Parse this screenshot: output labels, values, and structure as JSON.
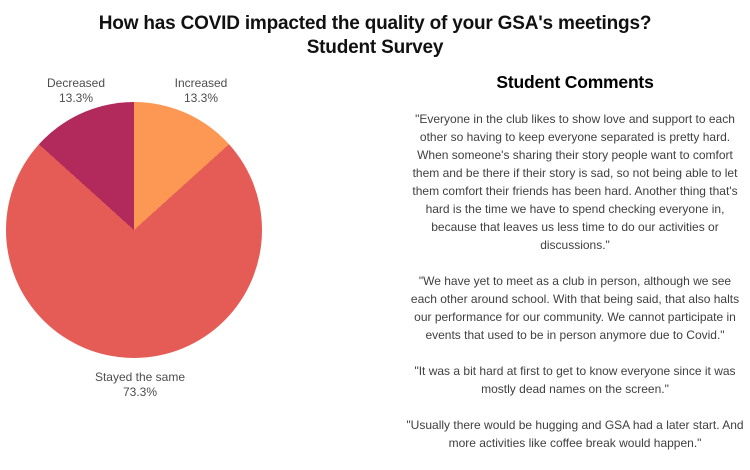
{
  "title": {
    "line1": "How has COVID impacted the quality of your GSA's meetings?",
    "line2": "Student Survey"
  },
  "pie": {
    "labels": {
      "increased": {
        "name": "Increased",
        "pct": "13.3%"
      },
      "stayed": {
        "name": "Stayed the same",
        "pct": "73.3%"
      },
      "decreased": {
        "name": "Decreased",
        "pct": "13.3%"
      }
    }
  },
  "comments": {
    "heading": "Student Comments",
    "items": [
      "\"Everyone in the club likes to show love and support to each other so having to keep everyone separated is pretty hard. When someone's sharing their story people want to comfort them and be there if their story is sad, so not being able to let them comfort their friends has been hard. Another thing that's hard is the time we have to spend checking everyone in, because that leaves us less time to do our activities or discussions.\"",
      "\"We have yet to meet as a club in person, although we see each other around school. With that being said, that also halts our performance for our community. We cannot participate in events that used to be in person anymore due to Covid.\"",
      "\"It was a bit hard at first to get to know everyone since it was mostly dead names on the screen.\"",
      "\"Usually there would be hugging and GSA had a later start. And more activities like coffee break would happen.\""
    ]
  },
  "chart_data": {
    "type": "pie",
    "title": "How has COVID impacted the quality of your GSA's meetings? Student Survey",
    "categories": [
      "Increased",
      "Stayed the same",
      "Decreased"
    ],
    "values": [
      13.3,
      73.3,
      13.3
    ],
    "colors": [
      "#fc9853",
      "#e45c55",
      "#b12a5b"
    ],
    "label_color": "#4d4d4d",
    "start_angle": "12 o'clock, clockwise",
    "legend_position": "outside labels"
  }
}
